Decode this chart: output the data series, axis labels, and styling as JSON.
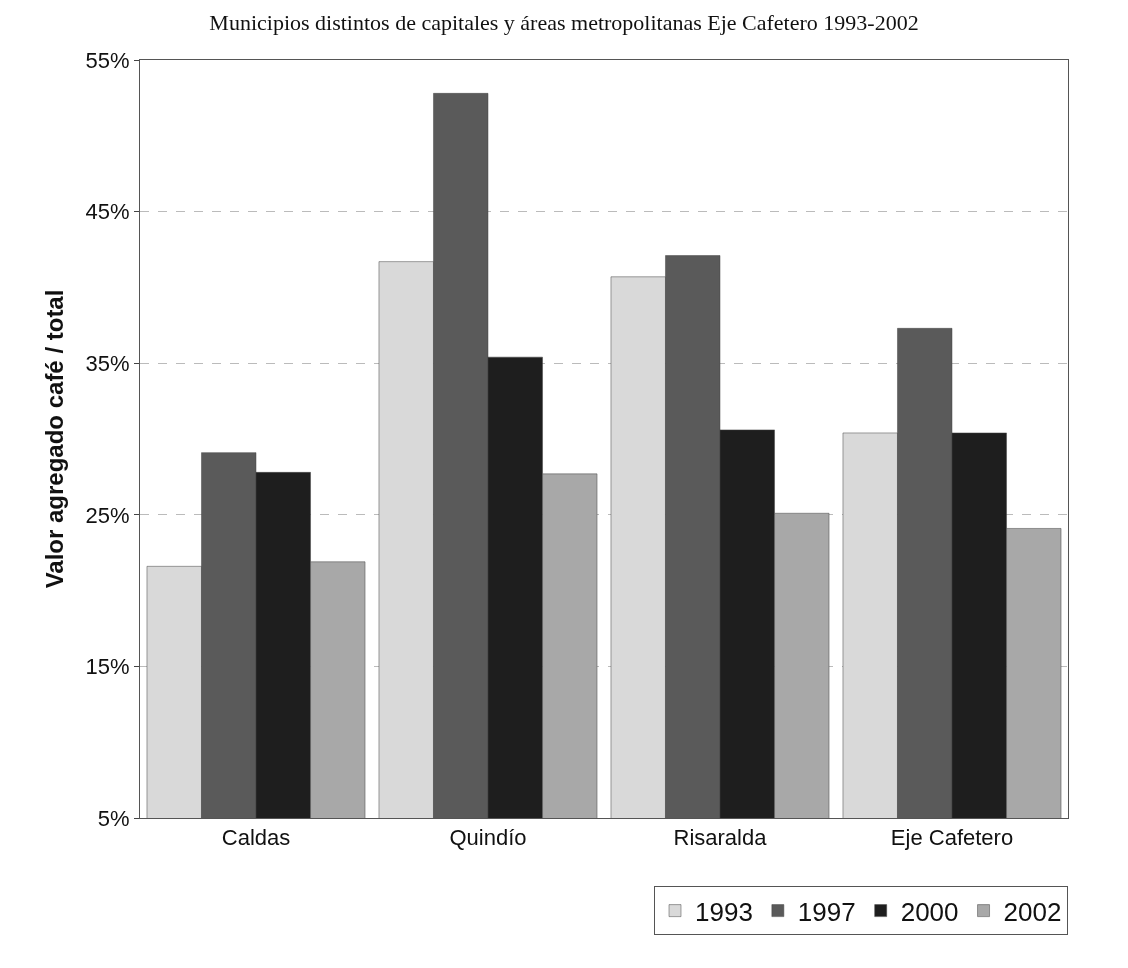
{
  "chart_data": {
    "type": "bar",
    "title": "Municipios distintos de capitales y áreas metropolitanas Eje Cafetero 1993-2002",
    "ylabel": "Valor agregado café / total",
    "categories": [
      "Caldas",
      "Quindío",
      "Risaralda",
      "Eje Cafetero"
    ],
    "series": [
      {
        "name": "1993",
        "color": "#d9d9d9",
        "values": [
          21.6,
          41.7,
          40.7,
          30.4
        ]
      },
      {
        "name": "1997",
        "color": "#5a5a5a",
        "values": [
          29.1,
          52.8,
          42.1,
          37.3
        ]
      },
      {
        "name": "2000",
        "color": "#1e1e1e",
        "values": [
          27.8,
          35.4,
          30.6,
          30.4
        ]
      },
      {
        "name": "2002",
        "color": "#a8a8a8",
        "values": [
          21.9,
          27.7,
          25.1,
          24.1
        ]
      }
    ],
    "ylim": [
      5,
      55
    ],
    "yticks": [
      {
        "value": 5,
        "label": "5%"
      },
      {
        "value": 15,
        "label": "15%"
      },
      {
        "value": 25,
        "label": "25%"
      },
      {
        "value": 35,
        "label": "35%"
      },
      {
        "value": 45,
        "label": "45%"
      },
      {
        "value": 55,
        "label": "55%"
      }
    ],
    "grid": "y",
    "legend": "bottom right"
  }
}
